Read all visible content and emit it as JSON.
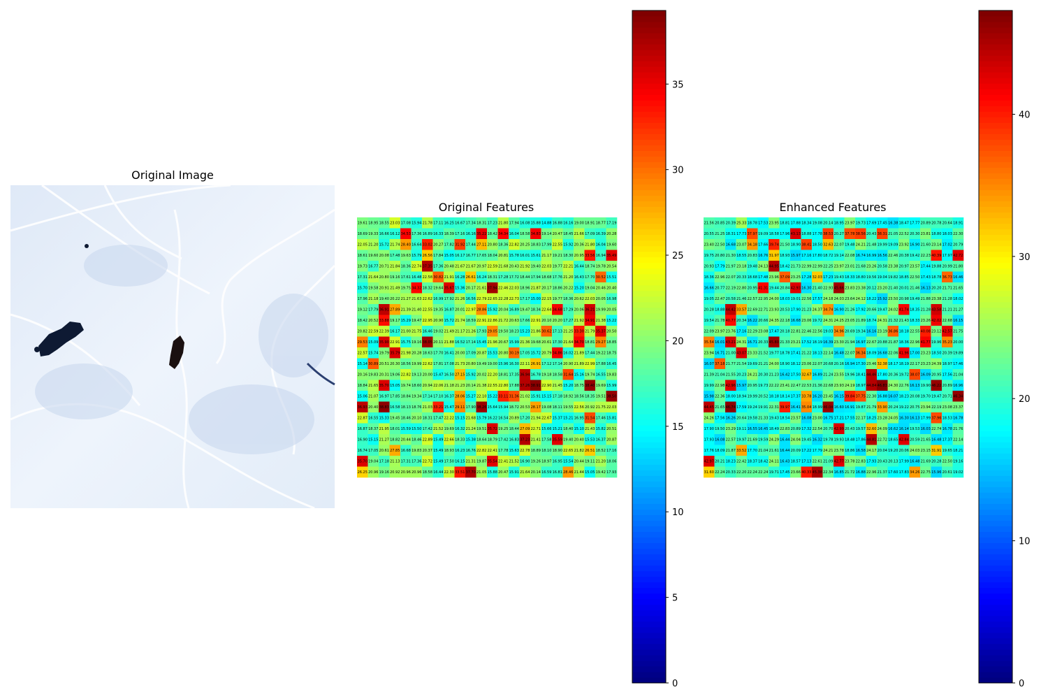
{
  "figure": {
    "panels": [
      {
        "id": "original-image",
        "title": "Original Image"
      },
      {
        "id": "original-features",
        "title": "Original Features"
      },
      {
        "id": "enhanced-features",
        "title": "Enhanced Features"
      }
    ]
  },
  "original_image": {
    "description_elements": [
      "snow-slope",
      "ski-tracks",
      "rock-outcrop",
      "dark-figure"
    ]
  },
  "chart_data": [
    {
      "type": "heatmap",
      "title": "Original Features",
      "colormap": "jet",
      "rows": 24,
      "cols": 24,
      "vmin": 0,
      "vmax": 39.3,
      "colorbar_ticks": [
        0,
        5,
        10,
        15,
        20,
        25,
        30,
        35
      ],
      "sample_row_0": [
        19.61,
        18.95,
        18.55,
        23.03,
        17.08,
        15.94,
        21.78,
        17.11,
        16.25,
        16.67,
        17.34,
        18.31,
        17.23,
        21.8,
        17.94,
        16.08,
        15.88,
        14.88,
        16.88,
        16.16,
        19.0,
        18.91,
        18.77,
        17.19
      ],
      "sample_row_1": [
        18.69,
        19.33,
        16.66,
        16.12,
        34.53,
        17.36,
        16.89,
        16.33,
        18.39,
        17.16,
        16.16,
        35.22,
        18.42,
        34.34,
        16.04,
        18.58,
        34.83,
        19.14,
        20.47,
        18.45,
        21.66,
        17.09,
        16.39,
        20.28
      ],
      "note": "values displayed in cells; high cells (~39) shown dark red"
    },
    {
      "type": "heatmap",
      "title": "Enhanced Features",
      "colormap": "jet",
      "rows": 24,
      "cols": 24,
      "vmin": 0,
      "vmax": 47.3,
      "colorbar_ticks": [
        0,
        10,
        20,
        30,
        40
      ],
      "sample_row_0": [
        21.56,
        20.85,
        20.39,
        25.33,
        18.78,
        17.53,
        23.95,
        18.81,
        17.88,
        18.34,
        19.08,
        20.14,
        18.95,
        23.97,
        19.73,
        17.69,
        17.45,
        16.38,
        18.47,
        17.77,
        20.89,
        20.78,
        20.64,
        18.91
      ],
      "sample_row_1": [
        20.55,
        21.25,
        18.31,
        17.73,
        37.97,
        19.09,
        18.58,
        17.96,
        43.13,
        18.88,
        17.78,
        38.53,
        20.27,
        37.78,
        38.56,
        20.43,
        38.31,
        21.05,
        22.52,
        20.3,
        23.81,
        18.8,
        18.03,
        22.3
      ],
      "note": "same layout as original features with amplified high values (~47 dark red)"
    }
  ]
}
